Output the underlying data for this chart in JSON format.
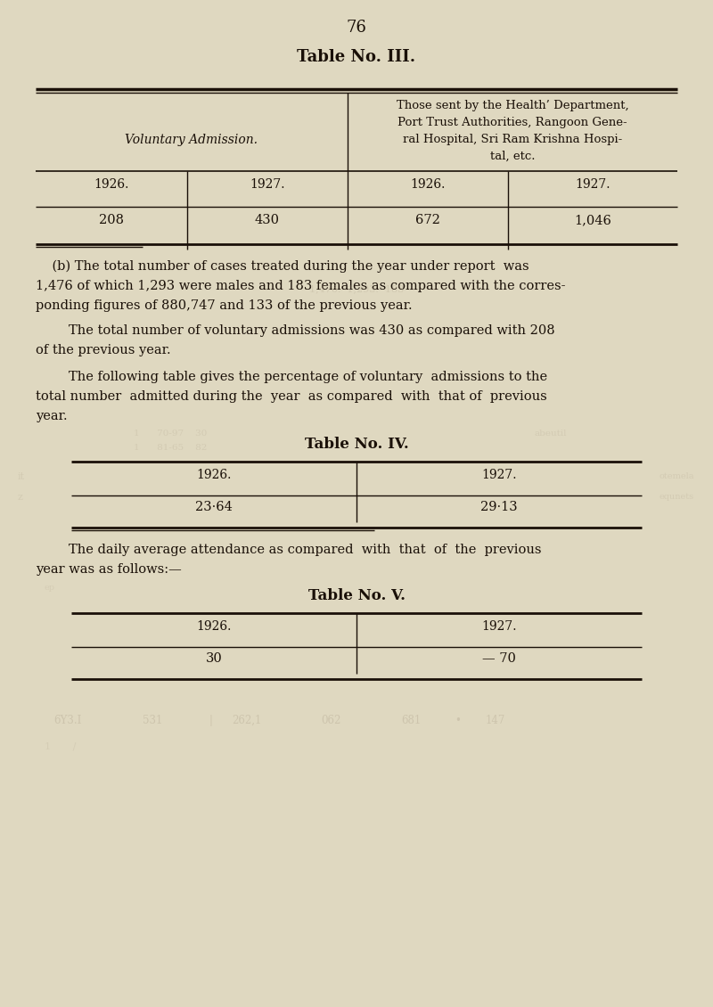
{
  "bg_color": "#dfd8c0",
  "page_number": "76",
  "table3_title": "Table No. III.",
  "table3_col1_header": "Voluntary Admission.",
  "table3_col2_header": "Those sent by the Health’ Department,\nPort Trust Authorities, Rangoon Gene-\nral Hospital, Sri Ram Krishna Hospi-\ntal, etc.",
  "table3_years_row": [
    "1926.",
    "1927.",
    "1926.",
    "1927."
  ],
  "table3_data_row": [
    "208",
    "430",
    "672",
    "1,046"
  ],
  "para_b_line1": "    (b) The total number of cases treated during the year under report  was",
  "para_b_line2": "1,476 of which 1,293 were males and 183 females as compared with the corres-",
  "para_b_line3": "ponding figures of 880,747 and 133 of the previous year.",
  "para_vol_line1": "        The total number of voluntary admissions was 430 as compared with 208",
  "para_vol_line2": "of the previous year.",
  "para_fol_line1": "        The following table gives the percentage of voluntary  admissions to the",
  "para_fol_line2": "total number  admitted during the  year  as compared  with  that of  previous",
  "para_fol_line3": "year.",
  "table4_title": "Table No. IV.",
  "table4_years_row": [
    "1926.",
    "1927."
  ],
  "table4_data_row": [
    "23·64",
    "29·13"
  ],
  "para_daily_line1": "        The daily average attendance as compared  with  that  of  the  previous",
  "para_daily_line2": "year was as follows:—",
  "table5_title": "Table No. V.",
  "table5_years_row": [
    "1926.",
    "1927."
  ],
  "table5_data_row": [
    "30",
    "— 70"
  ],
  "footer_col1": "6Y3.I",
  "footer_col2": "531",
  "footer_col3": "262,1",
  "footer_col4": "062",
  "footer_col5": "681",
  "footer_bullet": "•",
  "footer_col6": "147",
  "ghost_text_color": "#b8ad96",
  "text_color": "#1a1008",
  "line_color": "#1a1008"
}
